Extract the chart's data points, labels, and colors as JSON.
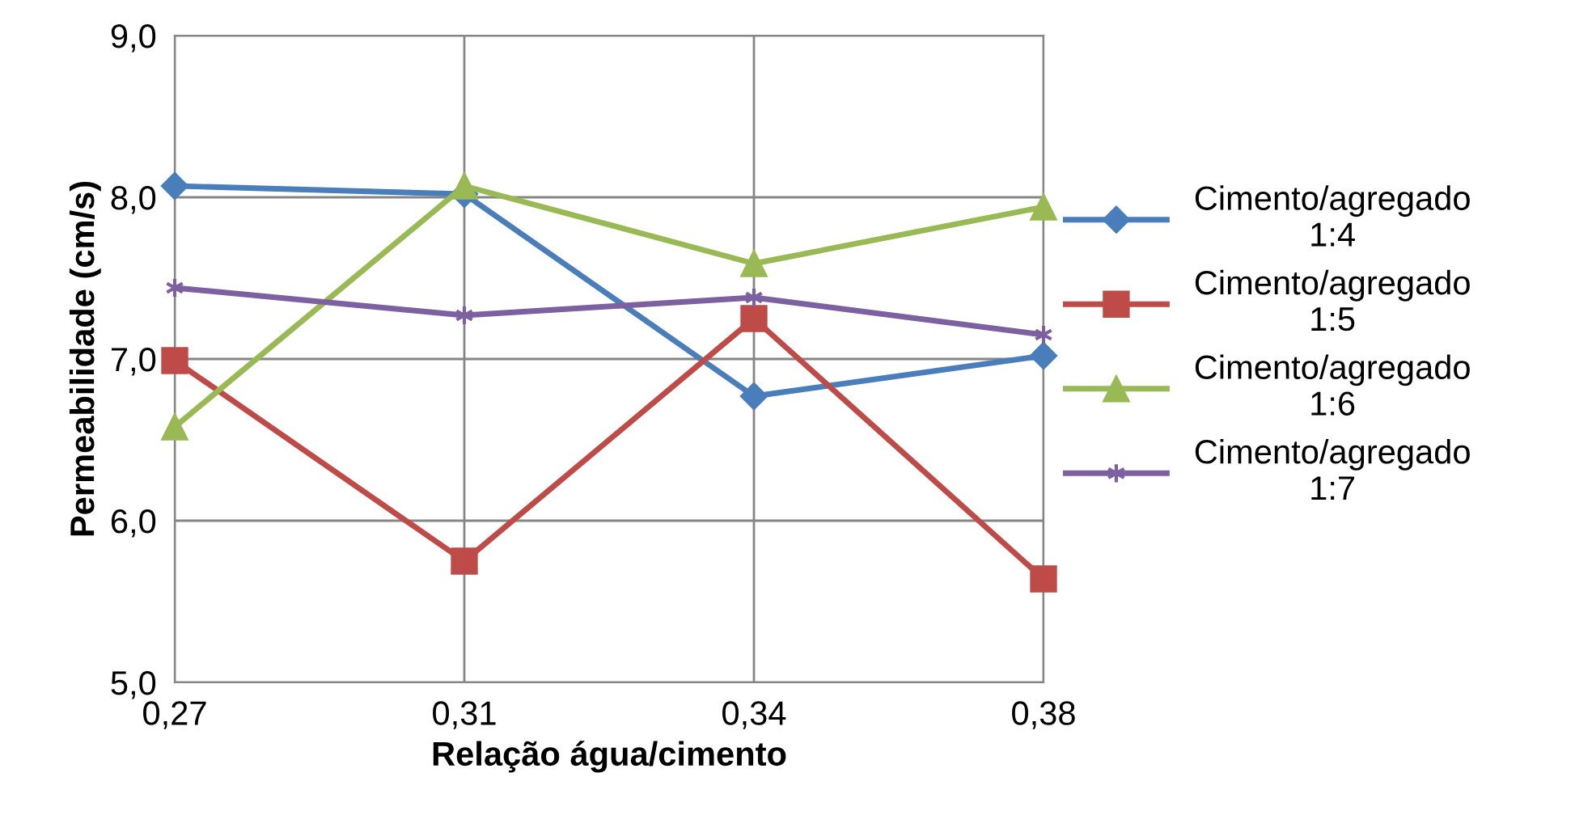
{
  "chart_data": {
    "type": "line",
    "xlabel": "Relação água/cimento",
    "ylabel": "Permeabilidade (cm/s)",
    "categories": [
      "0,27",
      "0,31",
      "0,34",
      "0,38"
    ],
    "ylim": [
      5,
      9
    ],
    "yticks": [
      {
        "value": 5,
        "label": "5,0"
      },
      {
        "value": 6,
        "label": "6,0"
      },
      {
        "value": 7,
        "label": "7,0"
      },
      {
        "value": 8,
        "label": "8,0"
      },
      {
        "value": 9,
        "label": "9,0"
      }
    ],
    "grid": true,
    "legend": "right",
    "line_style": "solid",
    "series": [
      {
        "name": "Cimento/agregado 1:4",
        "color": "#4a7ebb",
        "marker": "diamond",
        "values": [
          8.07,
          8.02,
          6.77,
          7.02
        ]
      },
      {
        "name": "Cimento/agregado 1:5",
        "color": "#be4b48",
        "marker": "square",
        "values": [
          6.99,
          5.75,
          7.25,
          5.64
        ]
      },
      {
        "name": "Cimento/agregado 1:6",
        "color": "#98b954",
        "marker": "triangle",
        "values": [
          6.58,
          8.07,
          7.59,
          7.94
        ]
      },
      {
        "name": "Cimento/agregado 1:7",
        "color": "#7d60a0",
        "marker": "cross",
        "values": [
          7.44,
          7.27,
          7.38,
          7.15
        ]
      }
    ]
  }
}
